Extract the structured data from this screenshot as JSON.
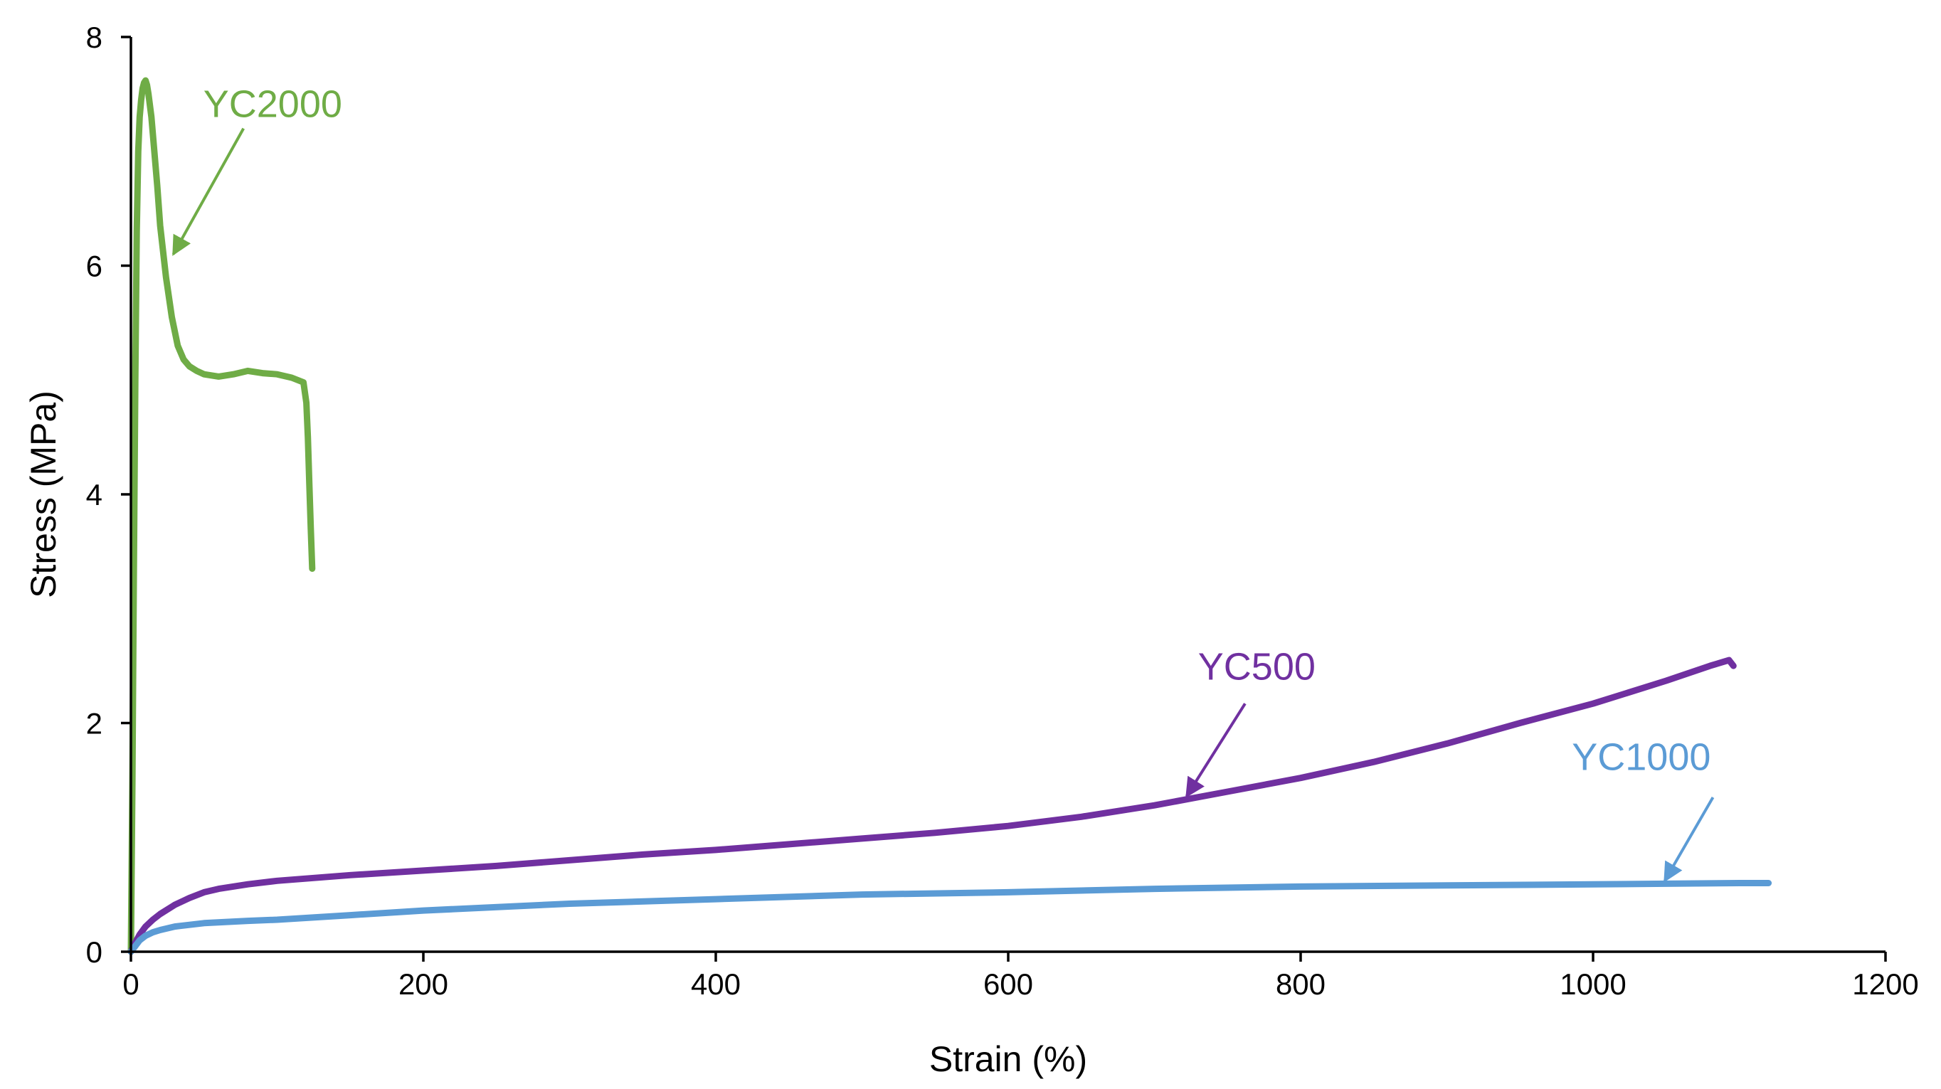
{
  "chart_data": {
    "type": "line",
    "xlabel": "Strain (%)",
    "ylabel": "Stress (MPa)",
    "xlim": [
      0,
      1200
    ],
    "ylim": [
      0,
      8
    ],
    "xticks": [
      "0",
      "200",
      "400",
      "600",
      "800",
      "1000",
      "1200"
    ],
    "yticks": [
      "0",
      "2",
      "4",
      "6",
      "8"
    ],
    "xtick_values": [
      0,
      200,
      400,
      600,
      800,
      1000,
      1200
    ],
    "ytick_values": [
      0,
      2,
      4,
      6,
      8
    ],
    "grid": false,
    "legend": "none",
    "series": [
      {
        "name": "YC2000",
        "color": "#6fac46",
        "x": [
          0,
          1,
          2,
          3,
          4,
          5,
          6,
          7,
          8,
          9,
          10,
          11,
          12,
          14,
          16,
          18,
          20,
          24,
          28,
          32,
          36,
          40,
          45,
          50,
          60,
          70,
          80,
          90,
          100,
          110,
          118,
          120,
          121,
          122,
          123,
          124
        ],
        "y": [
          0,
          1.5,
          3.3,
          5.0,
          6.3,
          7.0,
          7.3,
          7.45,
          7.55,
          7.6,
          7.62,
          7.58,
          7.5,
          7.3,
          7.0,
          6.7,
          6.35,
          5.9,
          5.55,
          5.3,
          5.18,
          5.12,
          5.08,
          5.05,
          5.03,
          5.05,
          5.08,
          5.06,
          5.05,
          5.02,
          4.98,
          4.8,
          4.5,
          4.1,
          3.7,
          3.35
        ],
        "label": {
          "text": "YC2000",
          "x": 97,
          "y": 7.3
        },
        "arrow": {
          "from": [
            77,
            7.2
          ],
          "to": [
            29,
            6.1
          ]
        }
      },
      {
        "name": "YC500",
        "color": "#7030a0",
        "x": [
          0,
          3,
          6,
          10,
          15,
          20,
          30,
          40,
          50,
          60,
          80,
          100,
          150,
          200,
          250,
          300,
          350,
          400,
          450,
          500,
          550,
          600,
          650,
          700,
          750,
          800,
          850,
          900,
          950,
          1000,
          1050,
          1080,
          1093,
          1096
        ],
        "y": [
          0,
          0.08,
          0.15,
          0.22,
          0.28,
          0.33,
          0.41,
          0.47,
          0.52,
          0.55,
          0.59,
          0.62,
          0.67,
          0.71,
          0.75,
          0.8,
          0.85,
          0.89,
          0.94,
          0.99,
          1.04,
          1.1,
          1.18,
          1.28,
          1.4,
          1.52,
          1.66,
          1.82,
          2.0,
          2.17,
          2.37,
          2.5,
          2.55,
          2.5
        ],
        "label": {
          "text": "YC500",
          "x": 770,
          "y": 2.38
        },
        "arrow": {
          "from": [
            762,
            2.17
          ],
          "to": [
            722,
            1.36
          ]
        }
      },
      {
        "name": "YC1000",
        "color": "#5b9bd5",
        "x": [
          0,
          3,
          6,
          10,
          15,
          20,
          30,
          50,
          80,
          100,
          150,
          200,
          300,
          400,
          500,
          600,
          700,
          800,
          900,
          1000,
          1050,
          1100,
          1120
        ],
        "y": [
          0,
          0.05,
          0.1,
          0.14,
          0.17,
          0.19,
          0.22,
          0.25,
          0.27,
          0.28,
          0.32,
          0.36,
          0.42,
          0.46,
          0.5,
          0.52,
          0.55,
          0.57,
          0.58,
          0.59,
          0.595,
          0.6,
          0.6
        ],
        "label": {
          "text": "YC1000",
          "x": 1033,
          "y": 1.59
        },
        "arrow": {
          "from": [
            1082,
            1.35
          ],
          "to": [
            1049,
            0.62
          ]
        }
      }
    ]
  }
}
